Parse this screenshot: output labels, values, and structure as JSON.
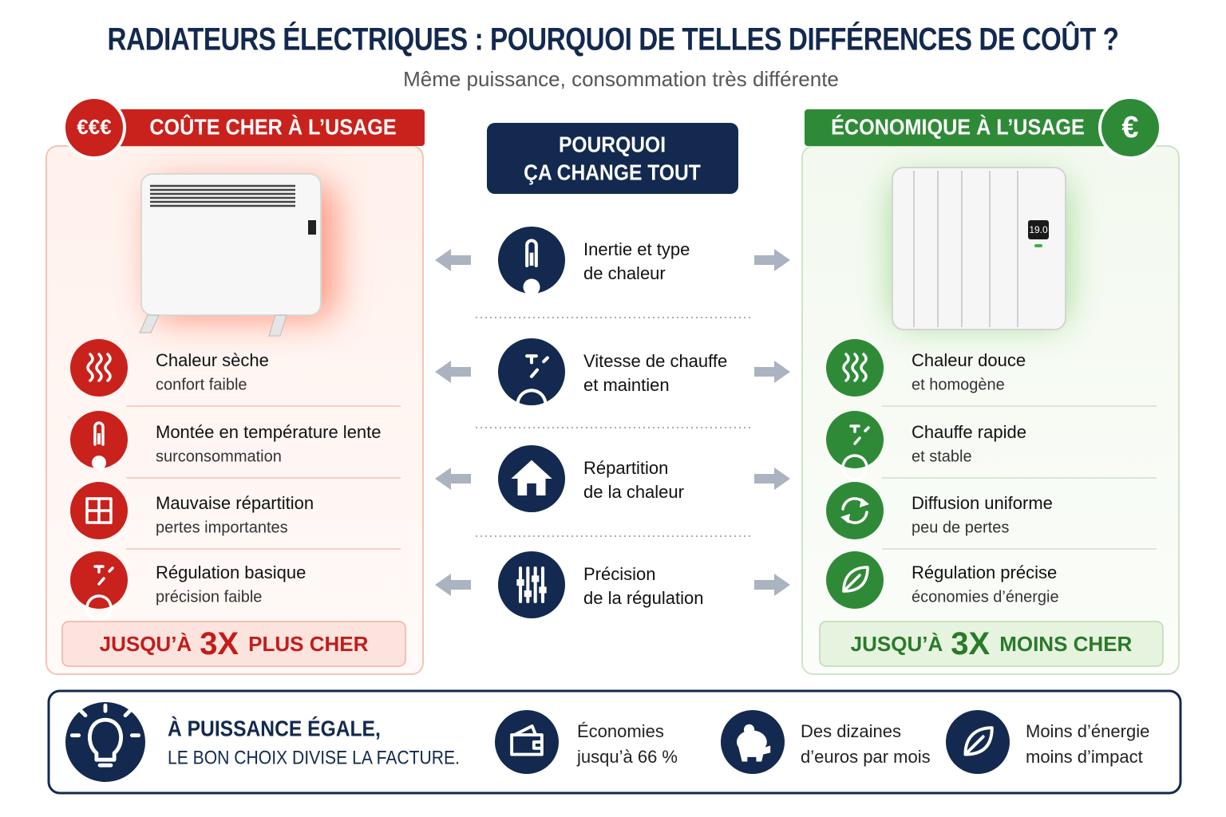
{
  "header": {
    "title": "RADIATEURS ÉLECTRIQUES : POURQUOI DE TELLES DIFFÉRENCES DE COÛT ?",
    "subtitle": "Même puissance, consommation très différente"
  },
  "left": {
    "badge": "€€€",
    "label": "COÛTE CHER À L’USAGE",
    "items": [
      {
        "title": "Chaleur sèche",
        "detail": "confort faible"
      },
      {
        "title": "Montée en température lente",
        "detail": "surconsommation"
      },
      {
        "title": "Mauvaise répartition",
        "detail": "pertes importantes"
      },
      {
        "title": "Régulation basique",
        "detail": "précision faible"
      }
    ],
    "verdict": {
      "prefix": "JUSQU’À",
      "factor": "3X",
      "suffix": "PLUS CHER"
    }
  },
  "center": {
    "label": [
      "POURQUOI",
      "ÇA CHANGE TOUT"
    ],
    "factors": [
      [
        "Inertie et type",
        "de chaleur"
      ],
      [
        "Vitesse de chauffe",
        "et maintien"
      ],
      [
        "Répartition",
        "de la chaleur"
      ],
      [
        "Précision",
        "de la régulation"
      ]
    ]
  },
  "right": {
    "badge": "€",
    "label": "ÉCONOMIQUE À L’USAGE",
    "display": "19.0",
    "items": [
      {
        "title": "Chaleur douce",
        "detail": "et homogène"
      },
      {
        "title": "Chauffe rapide",
        "detail": "et stable"
      },
      {
        "title": "Diffusion uniforme",
        "detail": "peu de pertes"
      },
      {
        "title": "Régulation précise",
        "detail": "économies d’énergie"
      }
    ],
    "verdict": {
      "prefix": "JUSQU’À",
      "factor": "3X",
      "suffix": "MOINS CHER"
    }
  },
  "summary": {
    "headline": [
      "À PUISSANCE ÉGALE,",
      "LE BON CHOIX DIVISE LA FACTURE."
    ],
    "benefits": [
      [
        "Économies",
        "jusqu’à 66 %"
      ],
      [
        "Des dizaines",
        "d’euros par mois"
      ],
      [
        "Moins d’énergie",
        "moins d’impact"
      ]
    ]
  }
}
